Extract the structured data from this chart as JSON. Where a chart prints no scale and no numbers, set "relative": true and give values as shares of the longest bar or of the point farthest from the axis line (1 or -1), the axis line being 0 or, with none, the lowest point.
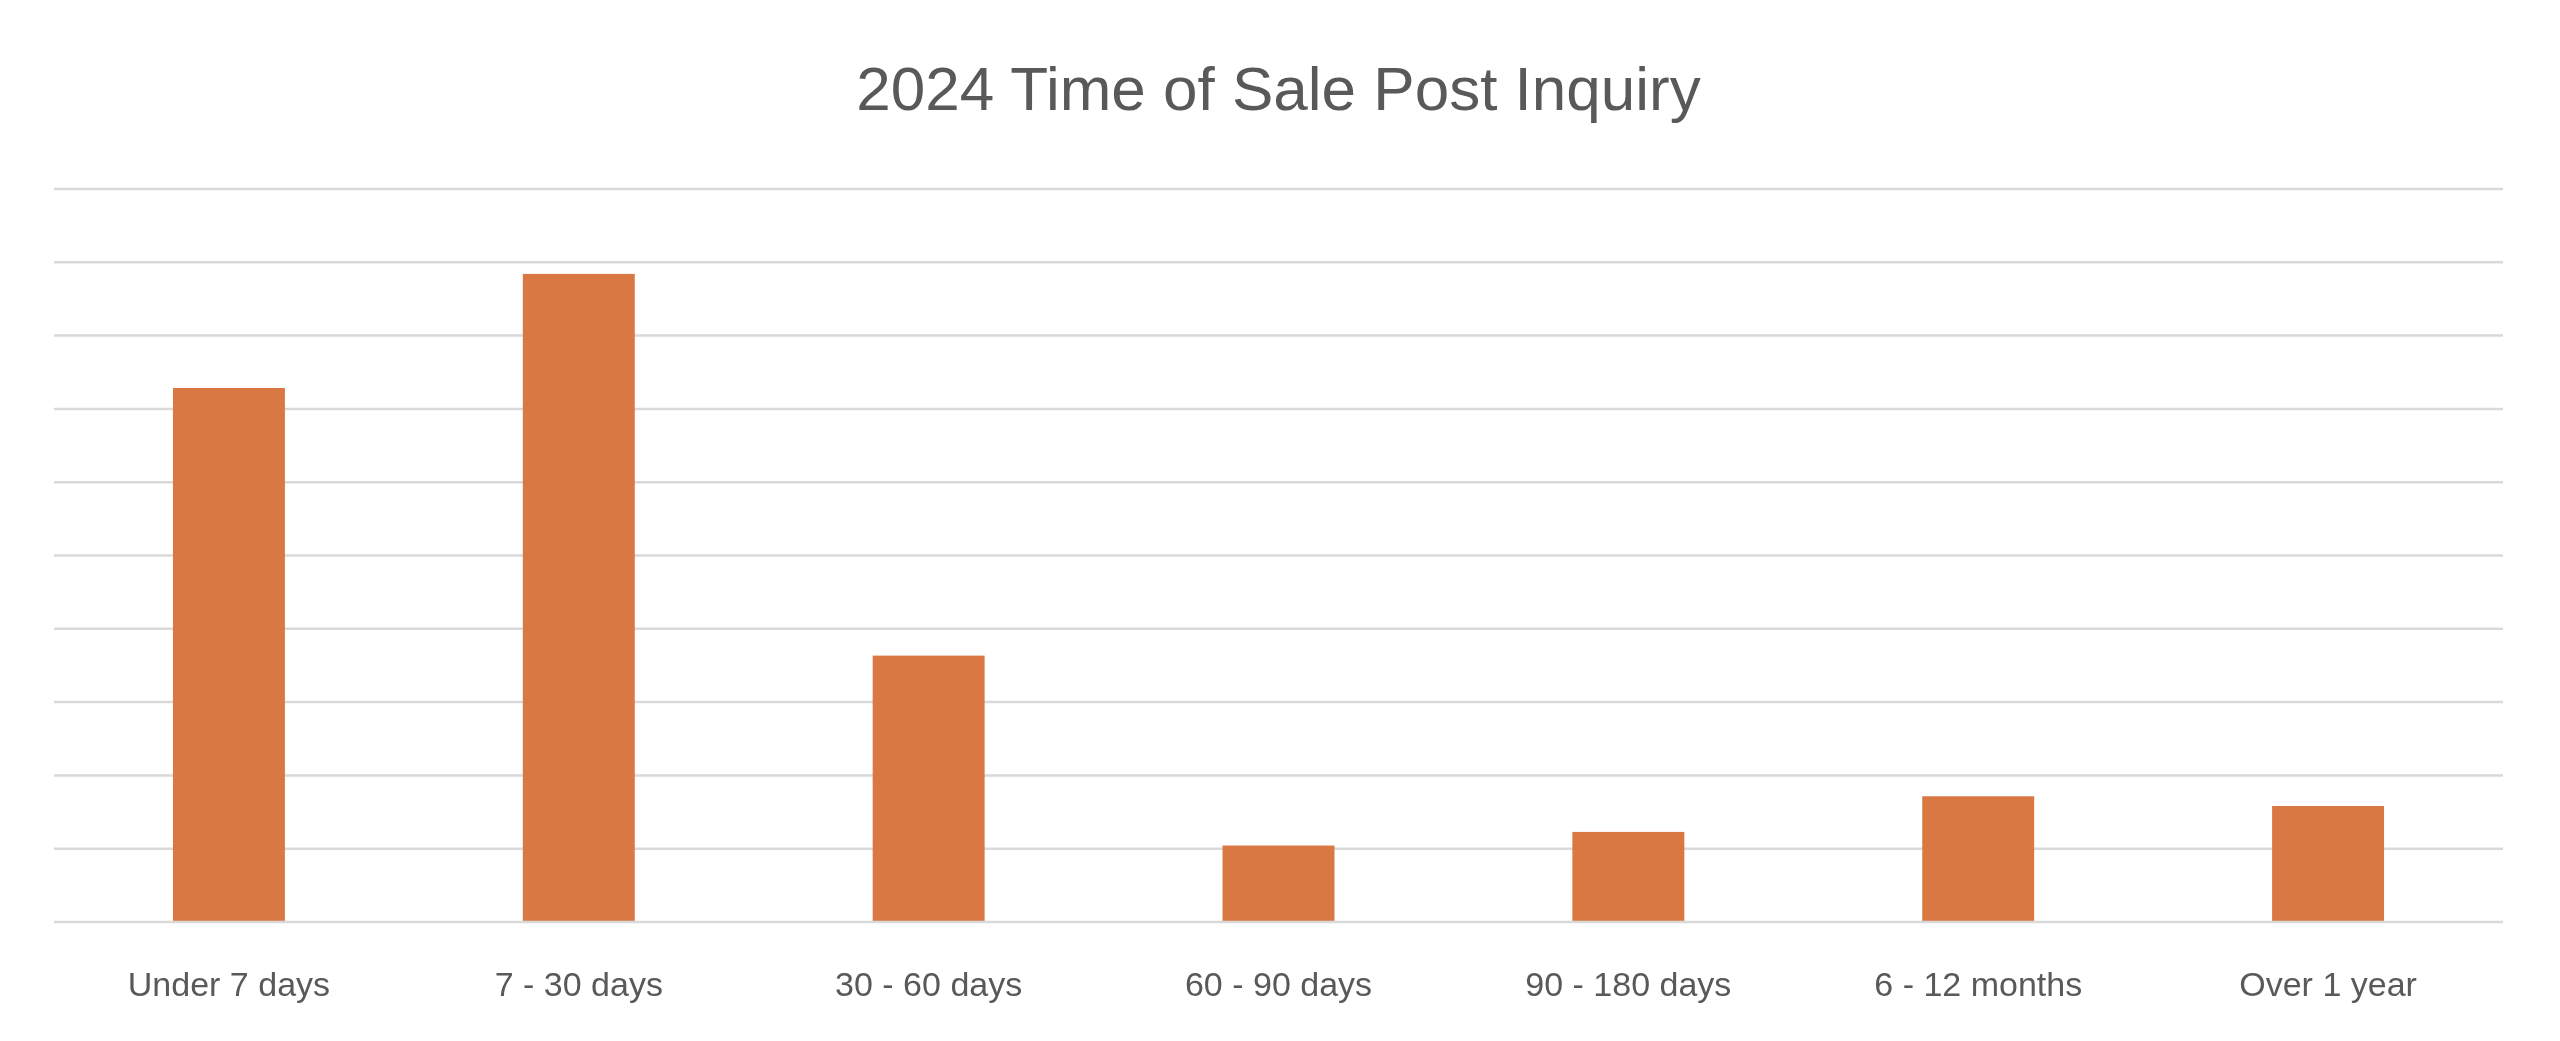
{
  "chart_data": {
    "type": "bar",
    "title": "2024 Time of Sale Post Inquiry",
    "categories": [
      "Under 7 days",
      "7 - 30 days",
      "30 - 60 days",
      "60 - 90 days",
      "90 - 180 days",
      "6 - 12 months",
      "Over 1 year"
    ],
    "values": [
      0.824,
      1,
      0.411,
      0.118,
      0.139,
      0.194,
      0.179
    ],
    "color": "#d97843",
    "relative": true,
    "grid": "y"
  }
}
